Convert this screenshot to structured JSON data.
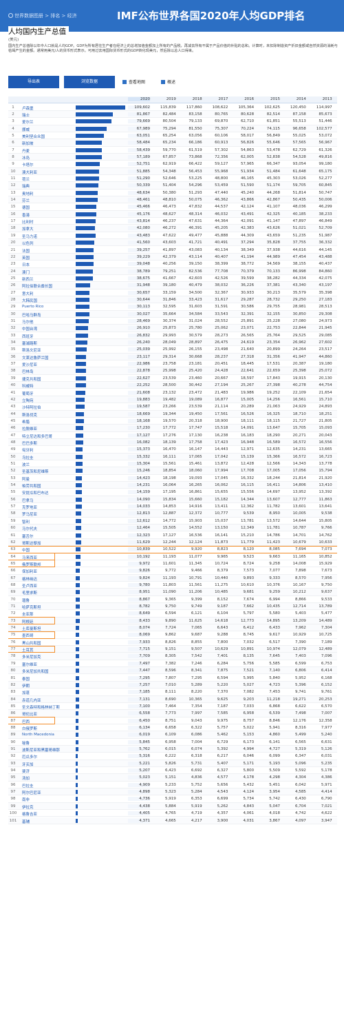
{
  "header": {
    "breadcrumb": "世界数据图册 > 排名 > 经济",
    "banner": "IMF公布世界各国2020年人均GDP排名"
  },
  "page": {
    "title": "人均国内生产总值",
    "unit": "(美元)",
    "description": "国内生产总值除以年中人口就是人均GDP。GDP为所有居住生产者在经济上的总增加值金额加上所有的产品税，再减去所有不属于产品价值的补贴的总和。计算时，未扣除制造资产折旧金额或自然资源的消耗与枯竭产生的金额。通常用美元/人的货币形式表示。可用过去用国际货币形式的GDP转化现美元，然后除以总人口得来。"
  },
  "toolbar": {
    "export": "导出表",
    "browse": "浏览数据",
    "map": "查看地图",
    "summary": "概述"
  },
  "years": [
    "2020",
    "2019",
    "2018",
    "2017",
    "2016",
    "2015",
    "2014",
    "2013",
    "2012"
  ],
  "rows": [
    [
      "1",
      "卢森堡",
      "109,602",
      "115,839",
      "117,860",
      "108,622",
      "105,364",
      "102,625",
      "120,450",
      "114,997",
      "108,0"
    ],
    [
      "2",
      "瑞士",
      "81,867",
      "82,484",
      "83,158",
      "80,765",
      "80,628",
      "82,514",
      "87,158",
      "85,673",
      "83,9"
    ],
    [
      "3",
      "爱尔兰",
      "79,669",
      "80,504",
      "79,133",
      "69,870",
      "62,710",
      "61,851",
      "55,513",
      "51,446",
      "48,8"
    ],
    [
      "4",
      "挪威",
      "67,989",
      "75,294",
      "81,550",
      "75,307",
      "70,224",
      "74,115",
      "96,658",
      "102,577",
      "101,1"
    ],
    [
      "5",
      "美利坚合众国",
      "63,051",
      "65,254",
      "63,056",
      "60,106",
      "58,017",
      "56,849",
      "55,025",
      "53,072",
      "51,5"
    ],
    [
      "6",
      "新加坡",
      "58,484",
      "65,234",
      "66,186",
      "60,913",
      "56,826",
      "55,646",
      "57,565",
      "56,967",
      "55,5"
    ],
    [
      "7",
      "丹麦",
      "58,439",
      "59,770",
      "61,519",
      "57,302",
      "54,863",
      "53,478",
      "62,729",
      "61,326",
      "58,5"
    ],
    [
      "8",
      "冰岛",
      "57,189",
      "67,857",
      "73,868",
      "72,356",
      "62,005",
      "52,838",
      "54,528",
      "49,816",
      "46,0"
    ],
    [
      "9",
      "卡塔尔",
      "52,751",
      "62,919",
      "66,422",
      "59,127",
      "57,965",
      "66,347",
      "93,054",
      "99,180",
      "101,9"
    ],
    [
      "10",
      "澳大利亚",
      "51,885",
      "54,348",
      "56,453",
      "55,968",
      "51,934",
      "51,484",
      "61,648",
      "65,175",
      "68,0"
    ],
    [
      "11",
      "荷兰",
      "51,290",
      "52,646",
      "53,225",
      "48,800",
      "46,165",
      "45,303",
      "53,026",
      "52,277",
      "50,1"
    ],
    [
      "12",
      "瑞典",
      "50,339",
      "51,404",
      "54,296",
      "53,459",
      "51,590",
      "51,174",
      "59,705",
      "60,845",
      "57,8"
    ],
    [
      "13",
      "奥地利",
      "48,634",
      "50,380",
      "51,293",
      "47,440",
      "45,240",
      "44,268",
      "51,814",
      "50,747",
      "48,5"
    ],
    [
      "14",
      "芬兰",
      "48,461",
      "48,810",
      "50,075",
      "46,362",
      "43,866",
      "42,867",
      "50,435",
      "50,006",
      "47,8"
    ],
    [
      "15",
      "德国",
      "45,466",
      "46,473",
      "47,832",
      "44,537",
      "42,124",
      "41,107",
      "48,036",
      "46,299",
      "43,8"
    ],
    [
      "16",
      "香港",
      "45,176",
      "48,627",
      "48,314",
      "46,032",
      "43,491",
      "42,325",
      "40,185",
      "38,233",
      "36,6"
    ],
    [
      "17",
      "比利时",
      "43,814",
      "46,237",
      "47,631",
      "44,364",
      "42,091",
      "41,147",
      "47,897",
      "46,849",
      "44,8"
    ],
    [
      "18",
      "加拿大",
      "42,080",
      "46,272",
      "46,391",
      "45,205",
      "42,383",
      "43,626",
      "51,021",
      "52,709",
      "52,7"
    ],
    [
      "19",
      "圣马力诺",
      "43,483",
      "47,622",
      "49,477",
      "45,888",
      "44,309",
      "43,659",
      "51,235",
      "51,987",
      "50,3"
    ],
    [
      "20",
      "以色列",
      "41,560",
      "43,603",
      "41,721",
      "40,491",
      "37,294",
      "35,828",
      "37,755",
      "36,332",
      "32,6"
    ],
    [
      "21",
      "法国",
      "39,257",
      "41,897",
      "43,083",
      "40,134",
      "38,349",
      "37,938",
      "44,616",
      "44,145",
      "42,7"
    ],
    [
      "22",
      "英国",
      "39,229",
      "42,379",
      "43,114",
      "40,407",
      "41,194",
      "44,989",
      "47,454",
      "43,488",
      "42,6"
    ],
    [
      "23",
      "日本",
      "39,048",
      "40,256",
      "39,150",
      "38,399",
      "38,772",
      "34,569",
      "38,155",
      "40,437",
      "48,6"
    ],
    [
      "24",
      "澳门",
      "38,789",
      "79,251",
      "82,536",
      "77,708",
      "70,379",
      "70,133",
      "86,998",
      "84,860",
      "73,9"
    ],
    [
      "25",
      "新西兰",
      "38,675",
      "41,667",
      "42,603",
      "42,526",
      "39,599",
      "38,282",
      "44,334",
      "42,075",
      "39,7"
    ],
    [
      "26",
      "阿拉伯联合酋长国",
      "31,948",
      "39,180",
      "40,479",
      "38,032",
      "36,226",
      "37,381",
      "43,340",
      "43,197",
      "42,2"
    ],
    [
      "27",
      "意大利",
      "30,657",
      "33,159",
      "34,500",
      "32,367",
      "30,933",
      "30,213",
      "35,579",
      "35,398",
      "34,7"
    ],
    [
      "28",
      "大韩民国",
      "30,644",
      "31,846",
      "33,423",
      "31,617",
      "29,287",
      "28,732",
      "29,250",
      "27,183",
      "25,4"
    ],
    [
      "29",
      "Puerto Rico",
      "30,113",
      "32,595",
      "31,603",
      "31,591",
      "30,586",
      "29,755",
      "28,981",
      "28,513",
      "27,9"
    ],
    [
      "30",
      "巴哈马群岛",
      "30,027",
      "35,664",
      "34,584",
      "33,543",
      "32,391",
      "32,155",
      "30,850",
      "29,308",
      "30,5"
    ],
    [
      "31",
      "马尔他",
      "28,469",
      "30,374",
      "31,024",
      "28,552",
      "25,891",
      "25,228",
      "27,080",
      "24,973",
      "22,6"
    ],
    [
      "32",
      "中国台湾",
      "26,910",
      "25,873",
      "25,780",
      "25,062",
      "23,071",
      "22,753",
      "22,844",
      "21,945",
      "21,2"
    ],
    [
      "33",
      "西班牙",
      "26,832",
      "29,993",
      "30,579",
      "28,273",
      "26,565",
      "25,764",
      "29,525",
      "29,085",
      "28,6"
    ],
    [
      "34",
      "塞浦路斯",
      "26,240",
      "28,049",
      "28,897",
      "26,475",
      "24,619",
      "23,354",
      "26,962",
      "27,602",
      "28,9"
    ],
    [
      "35",
      "斯洛文尼亚",
      "25,039",
      "25,992",
      "26,155",
      "23,498",
      "21,640",
      "20,899",
      "24,264",
      "23,517",
      "22,6"
    ],
    [
      "36",
      "文莱达鲁萨兰国",
      "23,117",
      "29,314",
      "30,668",
      "28,237",
      "27,318",
      "31,356",
      "41,947",
      "44,860",
      "47,7"
    ],
    [
      "37",
      "爱沙尼亚",
      "22,986",
      "23,758",
      "23,181",
      "20,451",
      "18,445",
      "17,531",
      "20,387",
      "19,180",
      "17,5"
    ],
    [
      "38",
      "巴林岛",
      "22,878",
      "25,998",
      "25,420",
      "24,428",
      "22,641",
      "22,659",
      "25,398",
      "25,072",
      "24,5"
    ],
    [
      "39",
      "捷克共和国",
      "22,627",
      "23,539",
      "23,460",
      "20,667",
      "18,597",
      "17,843",
      "19,915",
      "20,130",
      "19,8"
    ],
    [
      "40",
      "科威特",
      "22,252",
      "28,500",
      "30,442",
      "27,194",
      "25,267",
      "27,398",
      "40,278",
      "44,754",
      "45,7"
    ],
    [
      "41",
      "葡萄牙",
      "21,608",
      "23,132",
      "23,472",
      "21,483",
      "19,986",
      "19,252",
      "22,109",
      "21,654",
      "20,5"
    ],
    [
      "42",
      "立陶宛",
      "19,883",
      "19,482",
      "19,089",
      "16,877",
      "15,005",
      "14,256",
      "16,561",
      "15,710",
      "14,3"
    ],
    [
      "43",
      "沙特阿拉伯",
      "19,587",
      "23,266",
      "23,539",
      "21,114",
      "20,289",
      "21,063",
      "24,929",
      "24,893",
      "25,2"
    ],
    [
      "44",
      "斯洛伐克",
      "18,669",
      "19,344",
      "19,450",
      "17,561",
      "16,526",
      "16,325",
      "18,710",
      "18,251",
      "17,4"
    ],
    [
      "45",
      "希腊",
      "18,168",
      "19,570",
      "20,318",
      "18,900",
      "18,111",
      "18,115",
      "21,727",
      "21,805",
      "22,1"
    ],
    [
      "46",
      "拉脱维亚",
      "17,230",
      "17,772",
      "17,747",
      "15,518",
      "14,091",
      "13,647",
      "15,705",
      "15,093",
      "13,8"
    ],
    [
      "47",
      "特立尼达和多巴哥",
      "17,127",
      "17,276",
      "17,130",
      "16,238",
      "16,183",
      "18,290",
      "20,271",
      "20,043",
      "18,4"
    ],
    [
      "48",
      "巴巴多斯",
      "16,082",
      "18,139",
      "17,758",
      "17,423",
      "16,948",
      "16,589",
      "16,572",
      "16,556",
      "16,9"
    ],
    [
      "49",
      "匈牙利",
      "15,373",
      "16,470",
      "16,147",
      "14,443",
      "12,971",
      "12,635",
      "14,231",
      "13,665",
      "12,9"
    ],
    [
      "50",
      "乌拉圭",
      "15,332",
      "16,111",
      "17,065",
      "17,042",
      "15,139",
      "15,366",
      "16,572",
      "16,723",
      "15,0"
    ],
    [
      "51",
      "波兰",
      "15,304",
      "15,561",
      "15,461",
      "13,872",
      "12,428",
      "12,566",
      "14,343",
      "13,778",
      "13,1"
    ],
    [
      "52",
      "圣基茨和尼维斯",
      "15,246",
      "18,854",
      "18,060",
      "17,994",
      "17,708",
      "17,005",
      "17,056",
      "15,794",
      "15,2"
    ],
    [
      "53",
      "阿曼",
      "14,423",
      "18,198",
      "19,093",
      "17,045",
      "16,332",
      "18,244",
      "21,814",
      "21,920",
      "23,2"
    ],
    [
      "54",
      "帕劳共和国",
      "14,231",
      "16,064",
      "16,265",
      "16,062",
      "16,115",
      "16,411",
      "14,806",
      "13,410",
      "13,0"
    ],
    [
      "55",
      "安提瓜和巴布达",
      "14,159",
      "17,195",
      "16,861",
      "15,655",
      "15,556",
      "14,697",
      "13,952",
      "13,392",
      "13,4"
    ],
    [
      "56",
      "巴拿马",
      "14,090",
      "15,834",
      "15,660",
      "15,182",
      "14,344",
      "13,607",
      "12,777",
      "11,863",
      "10,9"
    ],
    [
      "57",
      "克罗地亚",
      "14,033",
      "14,853",
      "14,916",
      "13,411",
      "12,362",
      "11,782",
      "13,601",
      "13,641",
      "13,2"
    ],
    [
      "58",
      "罗马尼亚",
      "12,813",
      "12,887",
      "12,372",
      "10,777",
      "9,539",
      "8,950",
      "10,005",
      "9,538",
      "8,5"
    ],
    [
      "59",
      "智利",
      "12,612",
      "14,772",
      "15,903",
      "15,037",
      "13,781",
      "13,572",
      "14,644",
      "15,805",
      "15,3"
    ],
    [
      "60",
      "马尔代夫",
      "12,464",
      "15,505",
      "14,552",
      "13,150",
      "12,349",
      "11,781",
      "10,787",
      "9,766",
      "8,7"
    ],
    [
      "61",
      "塞舌尔",
      "12,323",
      "17,127",
      "16,536",
      "16,141",
      "15,210",
      "14,786",
      "14,701",
      "14,762",
      "12,0"
    ],
    [
      "62",
      "哥斯达黎加",
      "11,629",
      "12,244",
      "12,124",
      "11,873",
      "11,779",
      "11,423",
      "10,679",
      "10,633",
      "10,5"
    ],
    [
      "63",
      "中国",
      "10,839",
      "10,522",
      "9,920",
      "8,823",
      "8,120",
      "8,085",
      "7,694",
      "7,073",
      "6,30"
    ],
    [
      "64",
      "马来西亚",
      "10,192",
      "11,193",
      "11,077",
      "9,965",
      "9,523",
      "9,663",
      "11,165",
      "10,852",
      "10,8"
    ],
    [
      "65",
      "俄罗斯联邦",
      "9,972",
      "11,601",
      "11,345",
      "10,724",
      "8,724",
      "9,258",
      "14,008",
      "15,929",
      "15,2"
    ],
    [
      "66",
      "保加利亚",
      "9,826",
      "9,772",
      "9,466",
      "8,379",
      "7,573",
      "7,077",
      "7,898",
      "7,673",
      "7,4"
    ],
    [
      "67",
      "格林纳达",
      "9,824",
      "11,193",
      "10,791",
      "10,440",
      "9,893",
      "9,333",
      "8,570",
      "7,956",
      "7,6"
    ],
    [
      "68",
      "圣卢西亚",
      "9,780",
      "11,803",
      "11,561",
      "11,275",
      "10,610",
      "10,376",
      "10,167",
      "9,750",
      "9,4"
    ],
    [
      "69",
      "毛里求斯",
      "8,951",
      "11,090",
      "11,206",
      "10,485",
      "9,681",
      "9,259",
      "10,212",
      "9,637",
      "9,2"
    ],
    [
      "70",
      "瑙鲁",
      "8,867",
      "9,365",
      "9,399",
      "8,152",
      "7,674",
      "6,994",
      "8,866",
      "9,533",
      "8,2"
    ],
    [
      "71",
      "哈萨克斯坦",
      "8,782",
      "9,750",
      "9,749",
      "9,187",
      "7,662",
      "10,435",
      "12,714",
      "13,789",
      "12,3"
    ],
    [
      "72",
      "圭亚那",
      "8,649",
      "6,594",
      "6,121",
      "6,104",
      "5,797",
      "5,580",
      "5,403",
      "5,477",
      "5,3"
    ],
    [
      "73",
      "阿根廷",
      "8,433",
      "9,890",
      "11,625",
      "14,618",
      "12,773",
      "14,895",
      "13,209",
      "14,489",
      "13,9"
    ],
    [
      "74",
      "土库曼斯坦",
      "8,074",
      "7,724",
      "7,065",
      "6,643",
      "6,412",
      "6,433",
      "7,962",
      "7,304",
      "6,7"
    ],
    [
      "75",
      "墨西哥",
      "8,069",
      "9,862",
      "9,687",
      "9,288",
      "8,745",
      "9,617",
      "10,929",
      "10,725",
      "10,2"
    ],
    [
      "76",
      "黑山共和国",
      "7,933",
      "8,826",
      "8,855",
      "7,800",
      "7,032",
      "6,517",
      "7,390",
      "7,189",
      "6,5"
    ],
    [
      "77",
      "土耳其",
      "7,715",
      "9,151",
      "9,507",
      "10,629",
      "10,891",
      "10,974",
      "12,079",
      "12,489",
      "11,6"
    ],
    [
      "78",
      "多米尼加克",
      "7,709",
      "8,305",
      "7,542",
      "7,401",
      "8,135",
      "7,645",
      "7,403",
      "7,096",
      "6,8"
    ],
    [
      "79",
      "塞尔维亚",
      "7,497",
      "7,382",
      "7,246",
      "6,284",
      "5,756",
      "5,585",
      "6,599",
      "6,753",
      "6,0"
    ],
    [
      "80",
      "多米尼加共和国",
      "7,447",
      "8,596",
      "8,341",
      "7,875",
      "7,521",
      "7,140",
      "6,806",
      "6,414",
      "6,2"
    ],
    [
      "81",
      "泰国",
      "7,295",
      "7,807",
      "7,295",
      "6,594",
      "5,995",
      "5,840",
      "5,952",
      "6,168",
      "5,8"
    ],
    [
      "82",
      "伊朗",
      "7,257",
      "7,010",
      "5,289",
      "5,220",
      "5,027",
      "4,723",
      "5,396",
      "6,152",
      "7,1"
    ],
    [
      "83",
      "加蓬",
      "7,185",
      "8,111",
      "8,220",
      "7,370",
      "7,082",
      "7,453",
      "9,741",
      "9,761",
      "9,9"
    ],
    [
      "84",
      "赤道几内亚",
      "7,131",
      "8,690",
      "10,365",
      "9,625",
      "9,203",
      "11,218",
      "19,271",
      "20,253",
      "21,5"
    ],
    [
      "85",
      "圣文森特和格林纳丁斯",
      "7,100",
      "7,464",
      "7,354",
      "7,187",
      "7,033",
      "6,868",
      "6,622",
      "6,570",
      "6,3"
    ],
    [
      "86",
      "哥伦比亚",
      "6,558",
      "7,773",
      "7,997",
      "7,585",
      "6,958",
      "6,539",
      "7,498",
      "7,007",
      "7,7"
    ],
    [
      "87",
      "巴西",
      "6,450",
      "8,751",
      "9,043",
      "9,975",
      "8,757",
      "8,846",
      "12,176",
      "12,358",
      "12,4"
    ],
    [
      "88",
      "白俄罗斯",
      "6,134",
      "6,658",
      "6,322",
      "5,757",
      "5,022",
      "5,941",
      "8,316",
      "7,977",
      "6,9"
    ],
    [
      "89",
      "North Macedonia",
      "6,019",
      "6,109",
      "6,086",
      "5,462",
      "5,153",
      "4,860",
      "5,499",
      "5,240",
      "4,7"
    ],
    [
      "90",
      "秘鲁",
      "5,845",
      "6,958",
      "7,004",
      "6,729",
      "6,173",
      "6,141",
      "6,565",
      "6,631",
      "6,4"
    ],
    [
      "91",
      "波斯尼亚和黑塞哥维那",
      "5,762",
      "6,015",
      "6,074",
      "5,392",
      "4,994",
      "4,727",
      "5,319",
      "5,126",
      "4,7"
    ],
    [
      "92",
      "厄瓜多尔",
      "5,316",
      "6,222",
      "6,318",
      "6,217",
      "6,046",
      "6,099",
      "6,347",
      "6,031",
      "5,6"
    ],
    [
      "93",
      "牙买加",
      "5,221",
      "5,826",
      "5,731",
      "5,407",
      "5,171",
      "5,193",
      "5,096",
      "5,235",
      "5,4"
    ],
    [
      "94",
      "斐济",
      "5,207",
      "6,423",
      "6,692",
      "6,327",
      "5,800",
      "5,509",
      "5,592",
      "5,178",
      "4,8"
    ],
    [
      "95",
      "汤加",
      "5,023",
      "5,151",
      "4,836",
      "4,577",
      "4,178",
      "4,298",
      "4,304",
      "4,386",
      "4,5"
    ],
    [
      "96",
      "巴拉圭",
      "4,909",
      "5,233",
      "5,752",
      "5,656",
      "5,432",
      "5,451",
      "6,042",
      "5,971",
      "5,1"
    ],
    [
      "97",
      "阿尔巴尼亚",
      "4,898",
      "5,323",
      "5,284",
      "4,543",
      "4,124",
      "3,954",
      "4,585",
      "4,414",
      "4,2"
    ],
    [
      "98",
      "南非",
      "4,736",
      "5,919",
      "6,353",
      "6,699",
      "5,734",
      "5,742",
      "6,430",
      "6,790",
      "7,5"
    ],
    [
      "99",
      "伊拉克",
      "4,438",
      "5,884",
      "5,919",
      "5,262",
      "4,843",
      "5,047",
      "6,704",
      "7,021",
      "6,6"
    ],
    [
      "100",
      "格鲁吉亚",
      "4,405",
      "4,765",
      "4,719",
      "4,357",
      "4,061",
      "4,018",
      "4,742",
      "4,622",
      "4,4"
    ],
    [
      "101",
      "基辅",
      "4,371",
      "4,665",
      "4,217",
      "3,900",
      "4,031",
      "3,867",
      "4,097",
      "3,947",
      "3,6"
    ]
  ],
  "highlights": [
    "63",
    "64",
    "65",
    "73",
    "75",
    "77",
    "87"
  ]
}
